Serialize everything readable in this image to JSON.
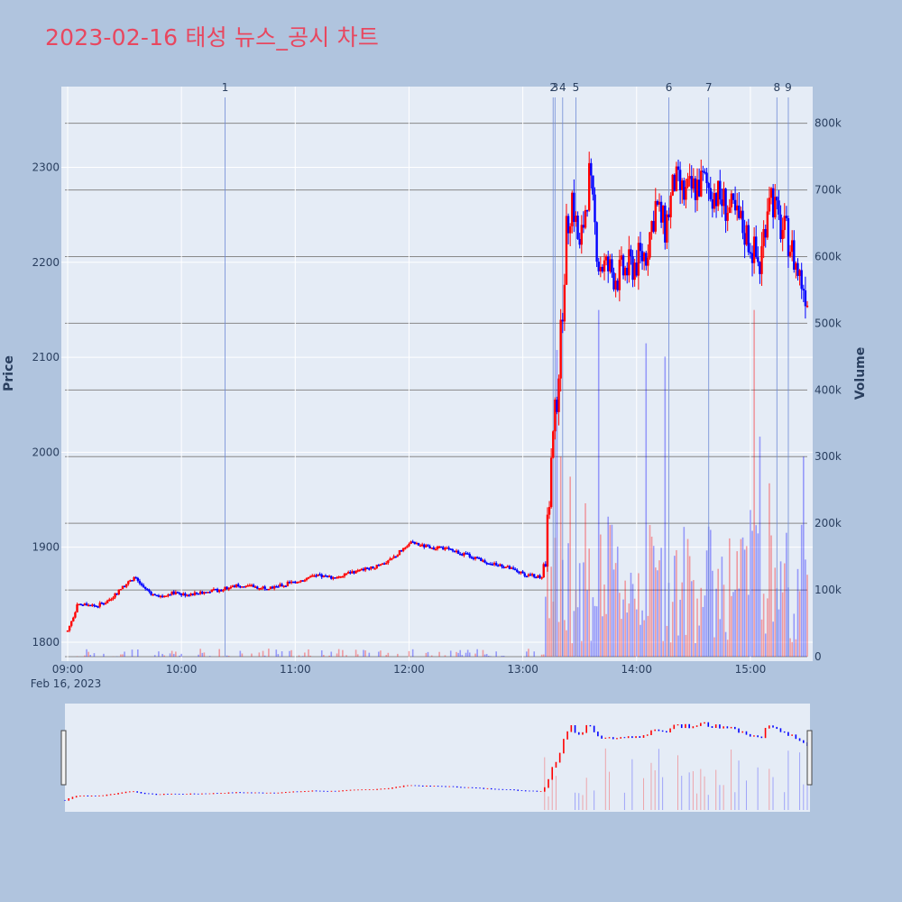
{
  "title": "2023-02-16 태성 뉴스_공시 차트",
  "colors": {
    "up": "#ff0000",
    "down": "#0000ff",
    "title": "#e8475f",
    "plot_bg": "#e5ecf6",
    "page_bg": "#b0c4de"
  },
  "chart_data": {
    "type": "candlestick",
    "xlabel": "",
    "ylabel": "Price",
    "y2label": "Volume",
    "x_date_label": "Feb 16, 2023",
    "x_ticks": [
      "09:00",
      "10:00",
      "11:00",
      "12:00",
      "13:00",
      "14:00",
      "15:00"
    ],
    "y_ticks": [
      1800,
      1900,
      2000,
      2100,
      2200,
      2300
    ],
    "y2_ticks": [
      "0",
      "100k",
      "200k",
      "300k",
      "400k",
      "500k",
      "600k",
      "700k",
      "800k"
    ],
    "ylim": [
      1780,
      2385
    ],
    "y2lim": [
      0,
      855000
    ],
    "xlim": [
      "09:00",
      "15:30"
    ],
    "price_series": [
      [
        "09:00",
        1812
      ],
      [
        "09:05",
        1838
      ],
      [
        "09:10",
        1840
      ],
      [
        "09:15",
        1838
      ],
      [
        "09:20",
        1842
      ],
      [
        "09:25",
        1850
      ],
      [
        "09:30",
        1860
      ],
      [
        "09:35",
        1868
      ],
      [
        "09:40",
        1858
      ],
      [
        "09:45",
        1850
      ],
      [
        "09:50",
        1848
      ],
      [
        "09:55",
        1852
      ],
      [
        "10:00",
        1850
      ],
      [
        "10:10",
        1852
      ],
      [
        "10:20",
        1855
      ],
      [
        "10:30",
        1860
      ],
      [
        "10:40",
        1858
      ],
      [
        "10:50",
        1858
      ],
      [
        "11:00",
        1864
      ],
      [
        "11:10",
        1870
      ],
      [
        "11:20",
        1868
      ],
      [
        "11:30",
        1874
      ],
      [
        "11:40",
        1878
      ],
      [
        "11:50",
        1886
      ],
      [
        "11:55",
        1895
      ],
      [
        "12:00",
        1905
      ],
      [
        "12:10",
        1900
      ],
      [
        "12:20",
        1898
      ],
      [
        "12:30",
        1892
      ],
      [
        "12:40",
        1885
      ],
      [
        "12:50",
        1880
      ],
      [
        "13:00",
        1872
      ],
      [
        "13:10",
        1868
      ],
      [
        "13:13",
        1915
      ],
      [
        "13:15",
        1990
      ],
      [
        "13:18",
        2060
      ],
      [
        "13:20",
        2120
      ],
      [
        "13:23",
        2230
      ],
      [
        "13:26",
        2270
      ],
      [
        "13:30",
        2210
      ],
      [
        "13:35",
        2290
      ],
      [
        "13:40",
        2200
      ],
      [
        "13:50",
        2185
      ],
      [
        "14:00",
        2200
      ],
      [
        "14:05",
        2210
      ],
      [
        "14:10",
        2260
      ],
      [
        "14:15",
        2235
      ],
      [
        "14:20",
        2285
      ],
      [
        "14:25",
        2270
      ],
      [
        "14:35",
        2285
      ],
      [
        "14:45",
        2265
      ],
      [
        "14:55",
        2240
      ],
      [
        "15:00",
        2220
      ],
      [
        "15:05",
        2195
      ],
      [
        "15:10",
        2280
      ],
      [
        "15:15",
        2240
      ],
      [
        "15:20",
        2225
      ],
      [
        "15:25",
        2190
      ],
      [
        "15:30",
        2165
      ]
    ],
    "volume_peaks": [
      [
        "13:13",
        140000
      ],
      [
        "13:18",
        460000
      ],
      [
        "13:20",
        300000
      ],
      [
        "13:25",
        270000
      ],
      [
        "13:33",
        230000
      ],
      [
        "13:40",
        520000
      ],
      [
        "13:45",
        210000
      ],
      [
        "14:05",
        470000
      ],
      [
        "14:08",
        180000
      ],
      [
        "14:15",
        450000
      ],
      [
        "14:45",
        150000
      ],
      [
        "15:00",
        220000
      ],
      [
        "15:02",
        520000
      ],
      [
        "15:05",
        330000
      ],
      [
        "15:10",
        260000
      ],
      [
        "15:18",
        140000
      ],
      [
        "15:28",
        300000
      ],
      [
        "15:32",
        410000
      ]
    ],
    "events": [
      {
        "label": "1",
        "time": "10:23"
      },
      {
        "label": "2",
        "time": "13:16"
      },
      {
        "label": "3",
        "time": "13:17"
      },
      {
        "label": "4",
        "time": "13:21"
      },
      {
        "label": "5",
        "time": "13:28"
      },
      {
        "label": "6",
        "time": "14:17"
      },
      {
        "label": "7",
        "time": "14:38"
      },
      {
        "label": "8",
        "time": "15:14"
      },
      {
        "label": "9",
        "time": "15:20"
      }
    ]
  }
}
